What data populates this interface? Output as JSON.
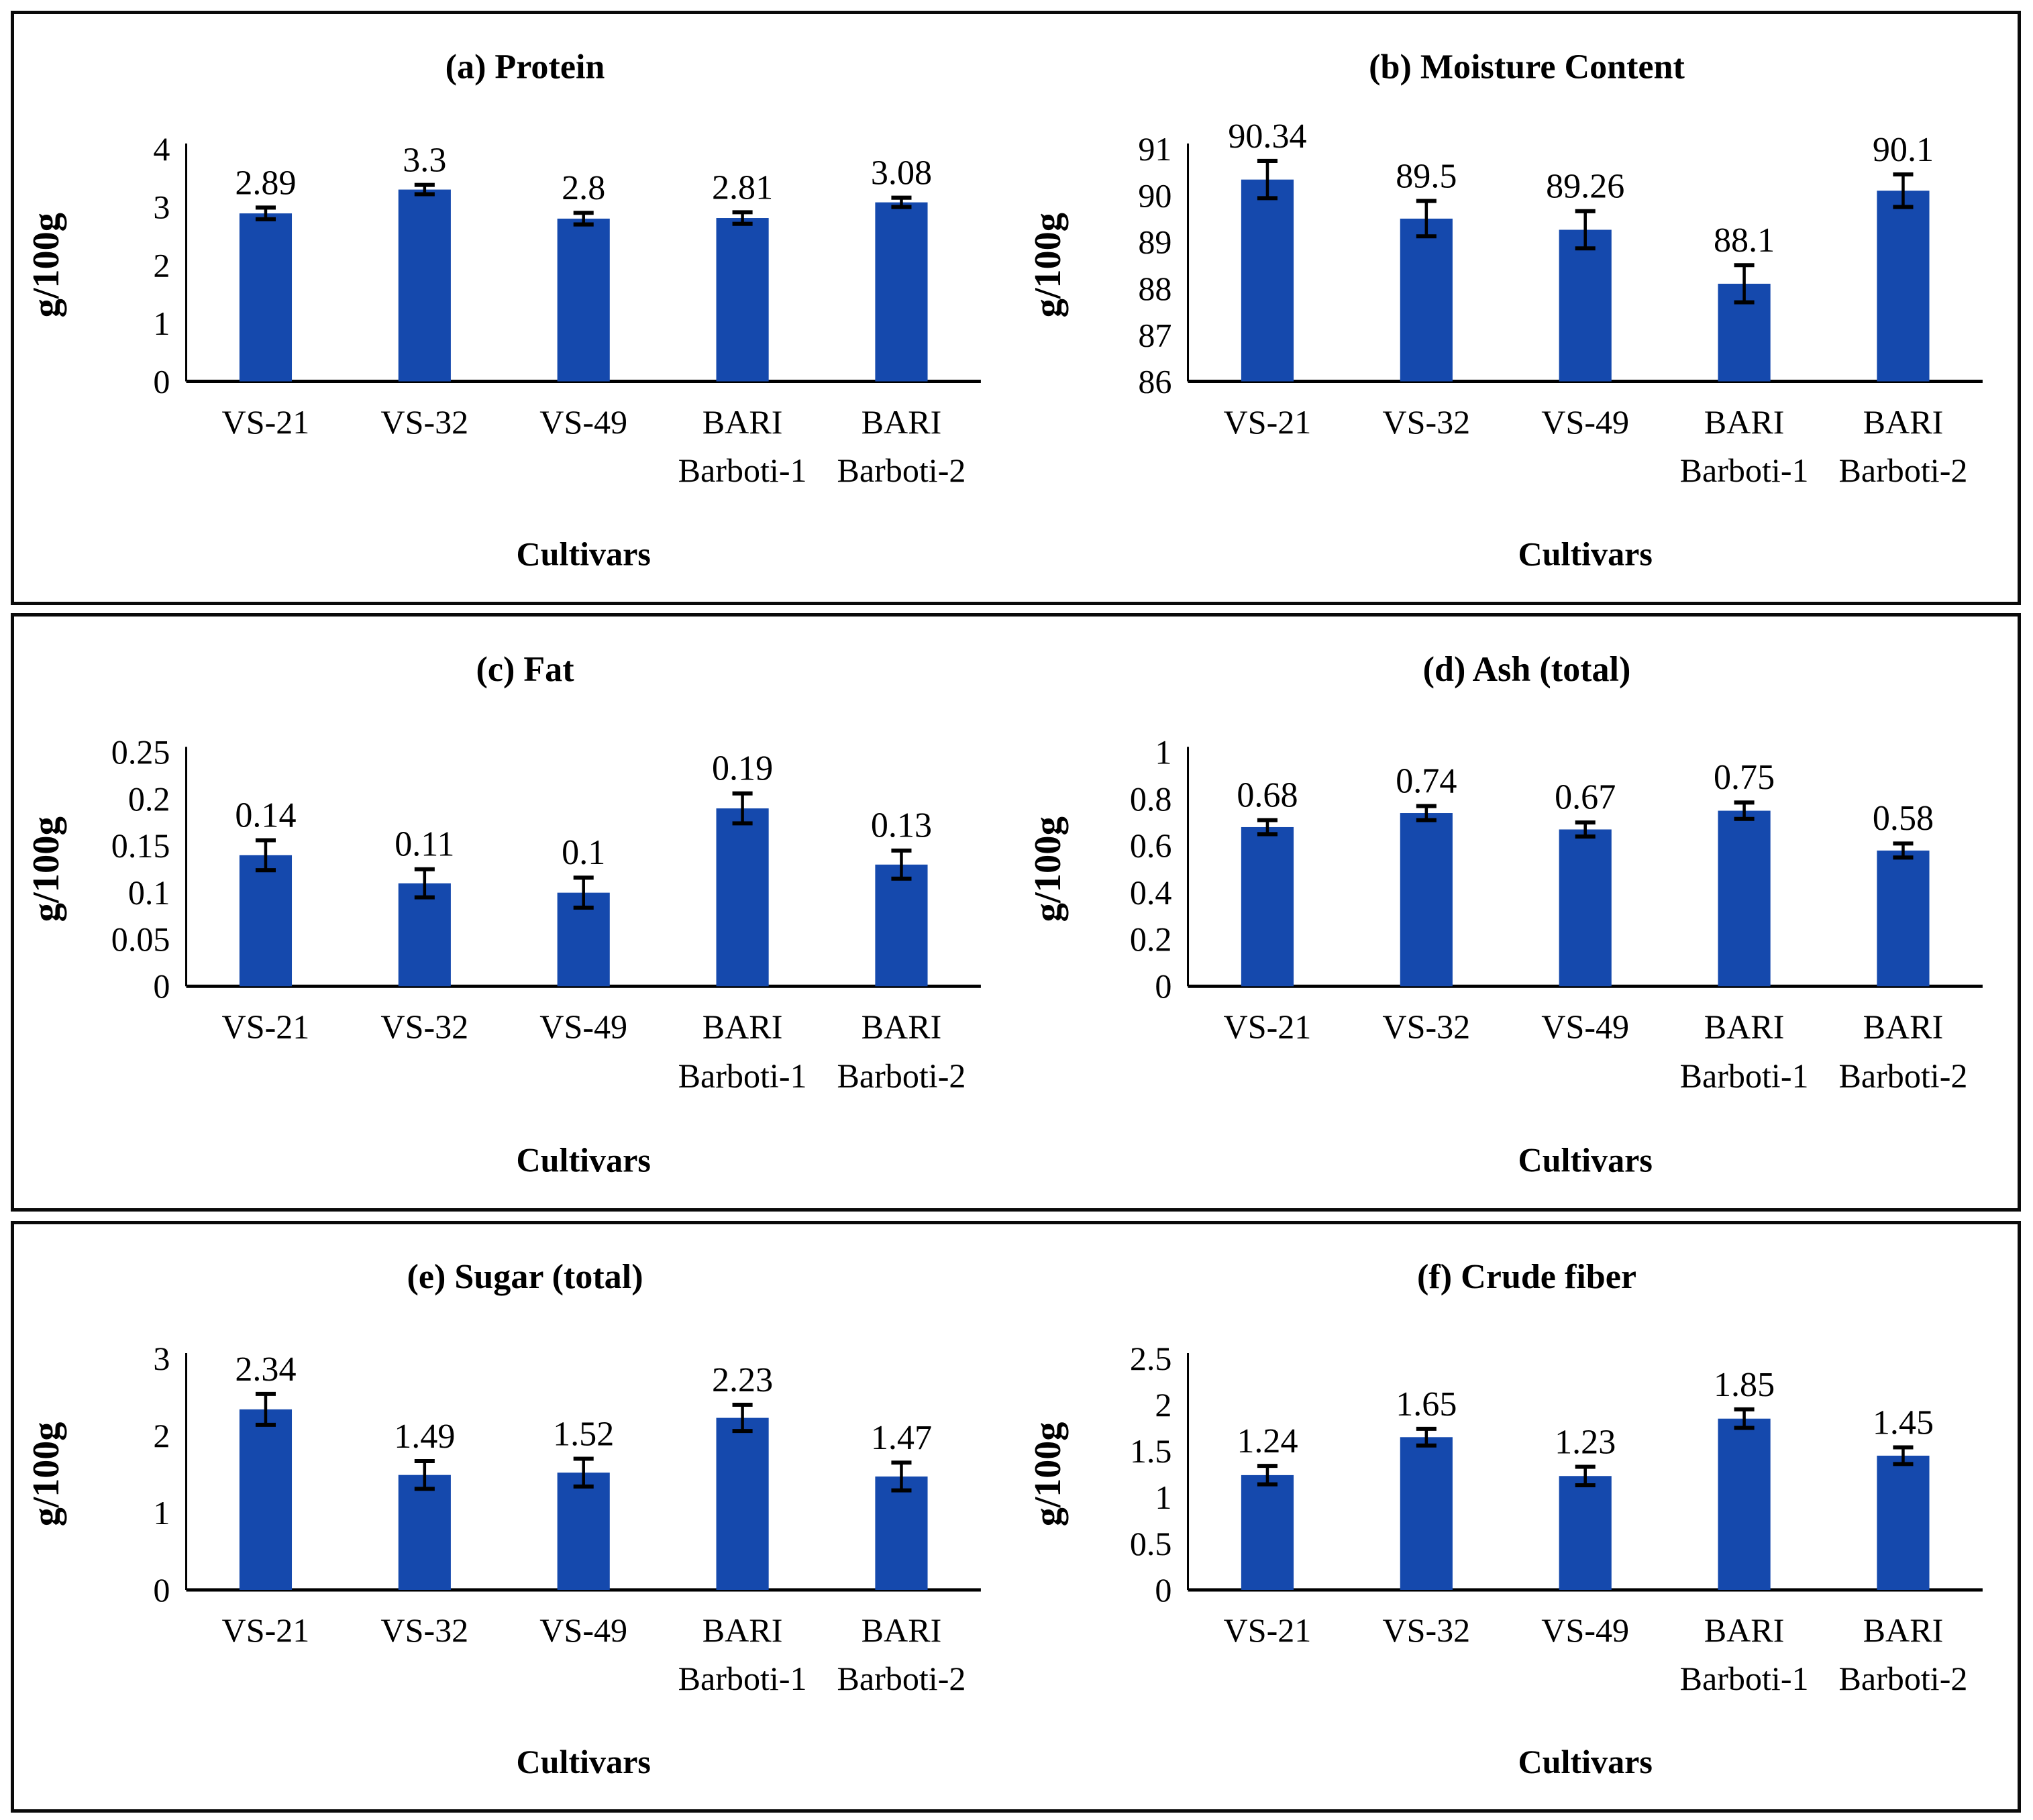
{
  "figure": {
    "xlabel": "Cultivars",
    "ylabel": "g/100g",
    "categories": [
      "VS-21",
      "VS-32",
      "VS-49",
      "BARI Barboti-1",
      "BARI Barboti-2"
    ]
  },
  "colors": {
    "bar": "#1549AD",
    "axis": "#000000",
    "error_bar": "#000000",
    "text": "#000000",
    "panel_border": "#0a0a0a",
    "background": "#ffffff"
  },
  "chart_data": [
    {
      "type": "bar",
      "panel": "a",
      "title": "(a) Protein",
      "categories": [
        "VS-21",
        "VS-32",
        "VS-49",
        "BARI Barboti-1",
        "BARI Barboti-2"
      ],
      "values": [
        2.89,
        3.3,
        2.8,
        2.81,
        3.08
      ],
      "value_labels": [
        "2.89",
        "3.3",
        "2.8",
        "2.81",
        "3.08"
      ],
      "errors": [
        0.1,
        0.08,
        0.1,
        0.1,
        0.08
      ],
      "xlabel": "Cultivars",
      "ylabel": "g/100g",
      "ylim": [
        0,
        4
      ],
      "yticks": [
        0,
        1,
        2,
        3,
        4
      ],
      "ytick_labels": [
        "0",
        "1",
        "2",
        "3",
        "4"
      ],
      "grid": false,
      "legend": "none"
    },
    {
      "type": "bar",
      "panel": "b",
      "title": "(b) Moisture Content",
      "categories": [
        "VS-21",
        "VS-32",
        "VS-49",
        "BARI Barboti-1",
        "BARI Barboti-2"
      ],
      "values": [
        90.34,
        89.5,
        89.26,
        88.1,
        90.1
      ],
      "value_labels": [
        "90.34",
        "89.5",
        "89.26",
        "88.1",
        "90.1"
      ],
      "errors": [
        0.4,
        0.38,
        0.4,
        0.4,
        0.35
      ],
      "xlabel": "Cultivars",
      "ylabel": "g/100g",
      "ylim": [
        86,
        91
      ],
      "yticks": [
        86,
        87,
        88,
        89,
        90,
        91
      ],
      "ytick_labels": [
        "86",
        "87",
        "88",
        "89",
        "90",
        "91"
      ],
      "grid": false,
      "legend": "none"
    },
    {
      "type": "bar",
      "panel": "c",
      "title": "(c) Fat",
      "categories": [
        "VS-21",
        "VS-32",
        "VS-49",
        "BARI Barboti-1",
        "BARI Barboti-2"
      ],
      "values": [
        0.14,
        0.11,
        0.1,
        0.19,
        0.13
      ],
      "value_labels": [
        "0.14",
        "0.11",
        "0.1",
        "0.19",
        "0.13"
      ],
      "errors": [
        0.016,
        0.015,
        0.016,
        0.016,
        0.015
      ],
      "xlabel": "Cultivars",
      "ylabel": "g/100g",
      "ylim": [
        0,
        0.25
      ],
      "yticks": [
        0,
        0.05,
        0.1,
        0.15,
        0.2,
        0.25
      ],
      "ytick_labels": [
        "0",
        "0.05",
        "0.1",
        "0.15",
        "0.2",
        "0.25"
      ],
      "grid": false,
      "legend": "none"
    },
    {
      "type": "bar",
      "panel": "d",
      "title": "(d) Ash (total)",
      "categories": [
        "VS-21",
        "VS-32",
        "VS-49",
        "BARI Barboti-1",
        "BARI Barboti-2"
      ],
      "values": [
        0.68,
        0.74,
        0.67,
        0.75,
        0.58
      ],
      "value_labels": [
        "0.68",
        "0.74",
        "0.67",
        "0.75",
        "0.58"
      ],
      "errors": [
        0.03,
        0.03,
        0.03,
        0.035,
        0.03
      ],
      "xlabel": "Cultivars",
      "ylabel": "g/100g",
      "ylim": [
        0,
        1
      ],
      "yticks": [
        0,
        0.2,
        0.4,
        0.6,
        0.8,
        1
      ],
      "ytick_labels": [
        "0",
        "0.2",
        "0.4",
        "0.6",
        "0.8",
        "1"
      ],
      "grid": false,
      "legend": "none"
    },
    {
      "type": "bar",
      "panel": "e",
      "title": "(e) Sugar (total)",
      "categories": [
        "VS-21",
        "VS-32",
        "VS-49",
        "BARI Barboti-1",
        "BARI Barboti-2"
      ],
      "values": [
        2.34,
        1.49,
        1.52,
        2.23,
        1.47
      ],
      "value_labels": [
        "2.34",
        "1.49",
        "1.52",
        "2.23",
        "1.47"
      ],
      "errors": [
        0.2,
        0.18,
        0.18,
        0.17,
        0.18
      ],
      "xlabel": "Cultivars",
      "ylabel": "g/100g",
      "ylim": [
        0,
        3
      ],
      "yticks": [
        0,
        1,
        2,
        3
      ],
      "ytick_labels": [
        "0",
        "1",
        "2",
        "3"
      ],
      "grid": false,
      "legend": "none"
    },
    {
      "type": "bar",
      "panel": "f",
      "title": "(f) Crude fiber",
      "categories": [
        "VS-21",
        "VS-32",
        "VS-49",
        "BARI Barboti-1",
        "BARI Barboti-2"
      ],
      "values": [
        1.24,
        1.65,
        1.23,
        1.85,
        1.45
      ],
      "value_labels": [
        "1.24",
        "1.65",
        "1.23",
        "1.85",
        "1.45"
      ],
      "errors": [
        0.1,
        0.09,
        0.1,
        0.1,
        0.09
      ],
      "xlabel": "Cultivars",
      "ylabel": "g/100g",
      "ylim": [
        0,
        2.5
      ],
      "yticks": [
        0,
        0.5,
        1,
        1.5,
        2,
        2.5
      ],
      "ytick_labels": [
        "0",
        "0.5",
        "1",
        "1.5",
        "2",
        "2.5"
      ],
      "grid": false,
      "legend": "none"
    }
  ]
}
